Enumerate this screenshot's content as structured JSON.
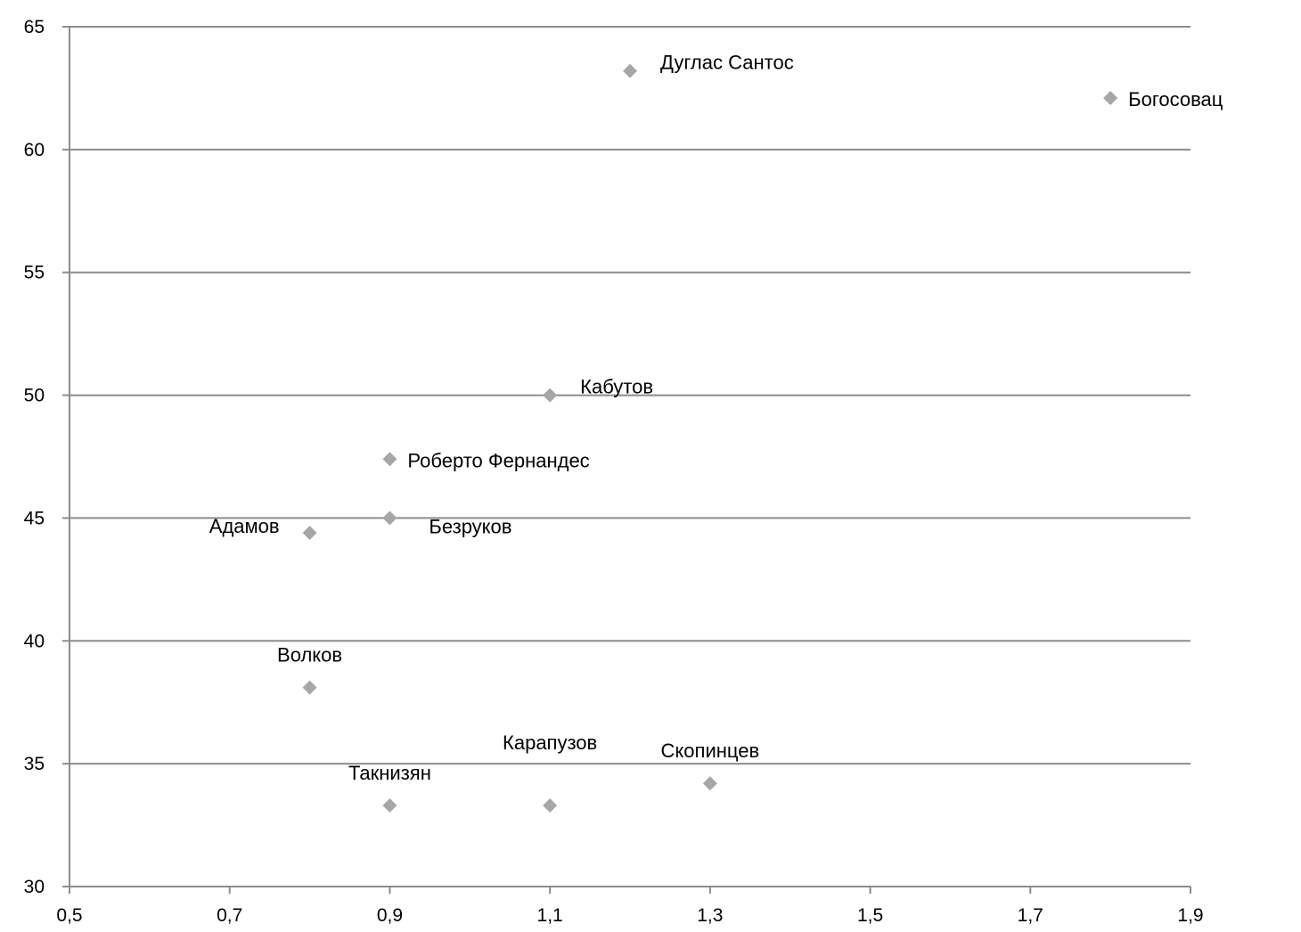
{
  "chart_data": {
    "type": "scatter",
    "title": "",
    "xlabel": "",
    "ylabel": "",
    "xlim": [
      0.5,
      1.9
    ],
    "ylim": [
      30,
      65
    ],
    "x_ticks": [
      "0,5",
      "0,7",
      "0,9",
      "1,1",
      "1,3",
      "1,5",
      "1,7",
      "1,9"
    ],
    "x_tick_values": [
      0.5,
      0.7,
      0.9,
      1.1,
      1.3,
      1.5,
      1.7,
      1.9
    ],
    "y_ticks": [
      "30",
      "35",
      "40",
      "45",
      "50",
      "55",
      "60",
      "65"
    ],
    "y_tick_values": [
      30,
      35,
      40,
      45,
      50,
      55,
      60,
      65
    ],
    "grid": "horizontal",
    "marker": "diamond",
    "marker_color": "#a6a6a6",
    "gridline_color": "#8c8c8c",
    "axis_color": "#8c8c8c",
    "points": [
      {
        "label": "Дуглас Сантос",
        "x": 1.2,
        "y": 63.2,
        "label_pos": "right-above"
      },
      {
        "label": "Богосовац",
        "x": 1.8,
        "y": 62.1,
        "label_pos": "right"
      },
      {
        "label": "Кабутов",
        "x": 1.1,
        "y": 50.0,
        "label_pos": "right-above"
      },
      {
        "label": "Роберто Фернандес",
        "x": 0.9,
        "y": 47.4,
        "label_pos": "right"
      },
      {
        "label": "Безруков",
        "x": 0.9,
        "y": 45.0,
        "label_pos": "right-below"
      },
      {
        "label": "Адамов",
        "x": 0.8,
        "y": 44.4,
        "label_pos": "left-above"
      },
      {
        "label": "Волков",
        "x": 0.8,
        "y": 38.1,
        "label_pos": "above"
      },
      {
        "label": "Такнизян",
        "x": 0.9,
        "y": 33.3,
        "label_pos": "above"
      },
      {
        "label": "Карапузов",
        "x": 1.1,
        "y": 33.3,
        "label_pos": "above-high"
      },
      {
        "label": "Скопинцев",
        "x": 1.3,
        "y": 34.2,
        "label_pos": "above"
      }
    ]
  }
}
